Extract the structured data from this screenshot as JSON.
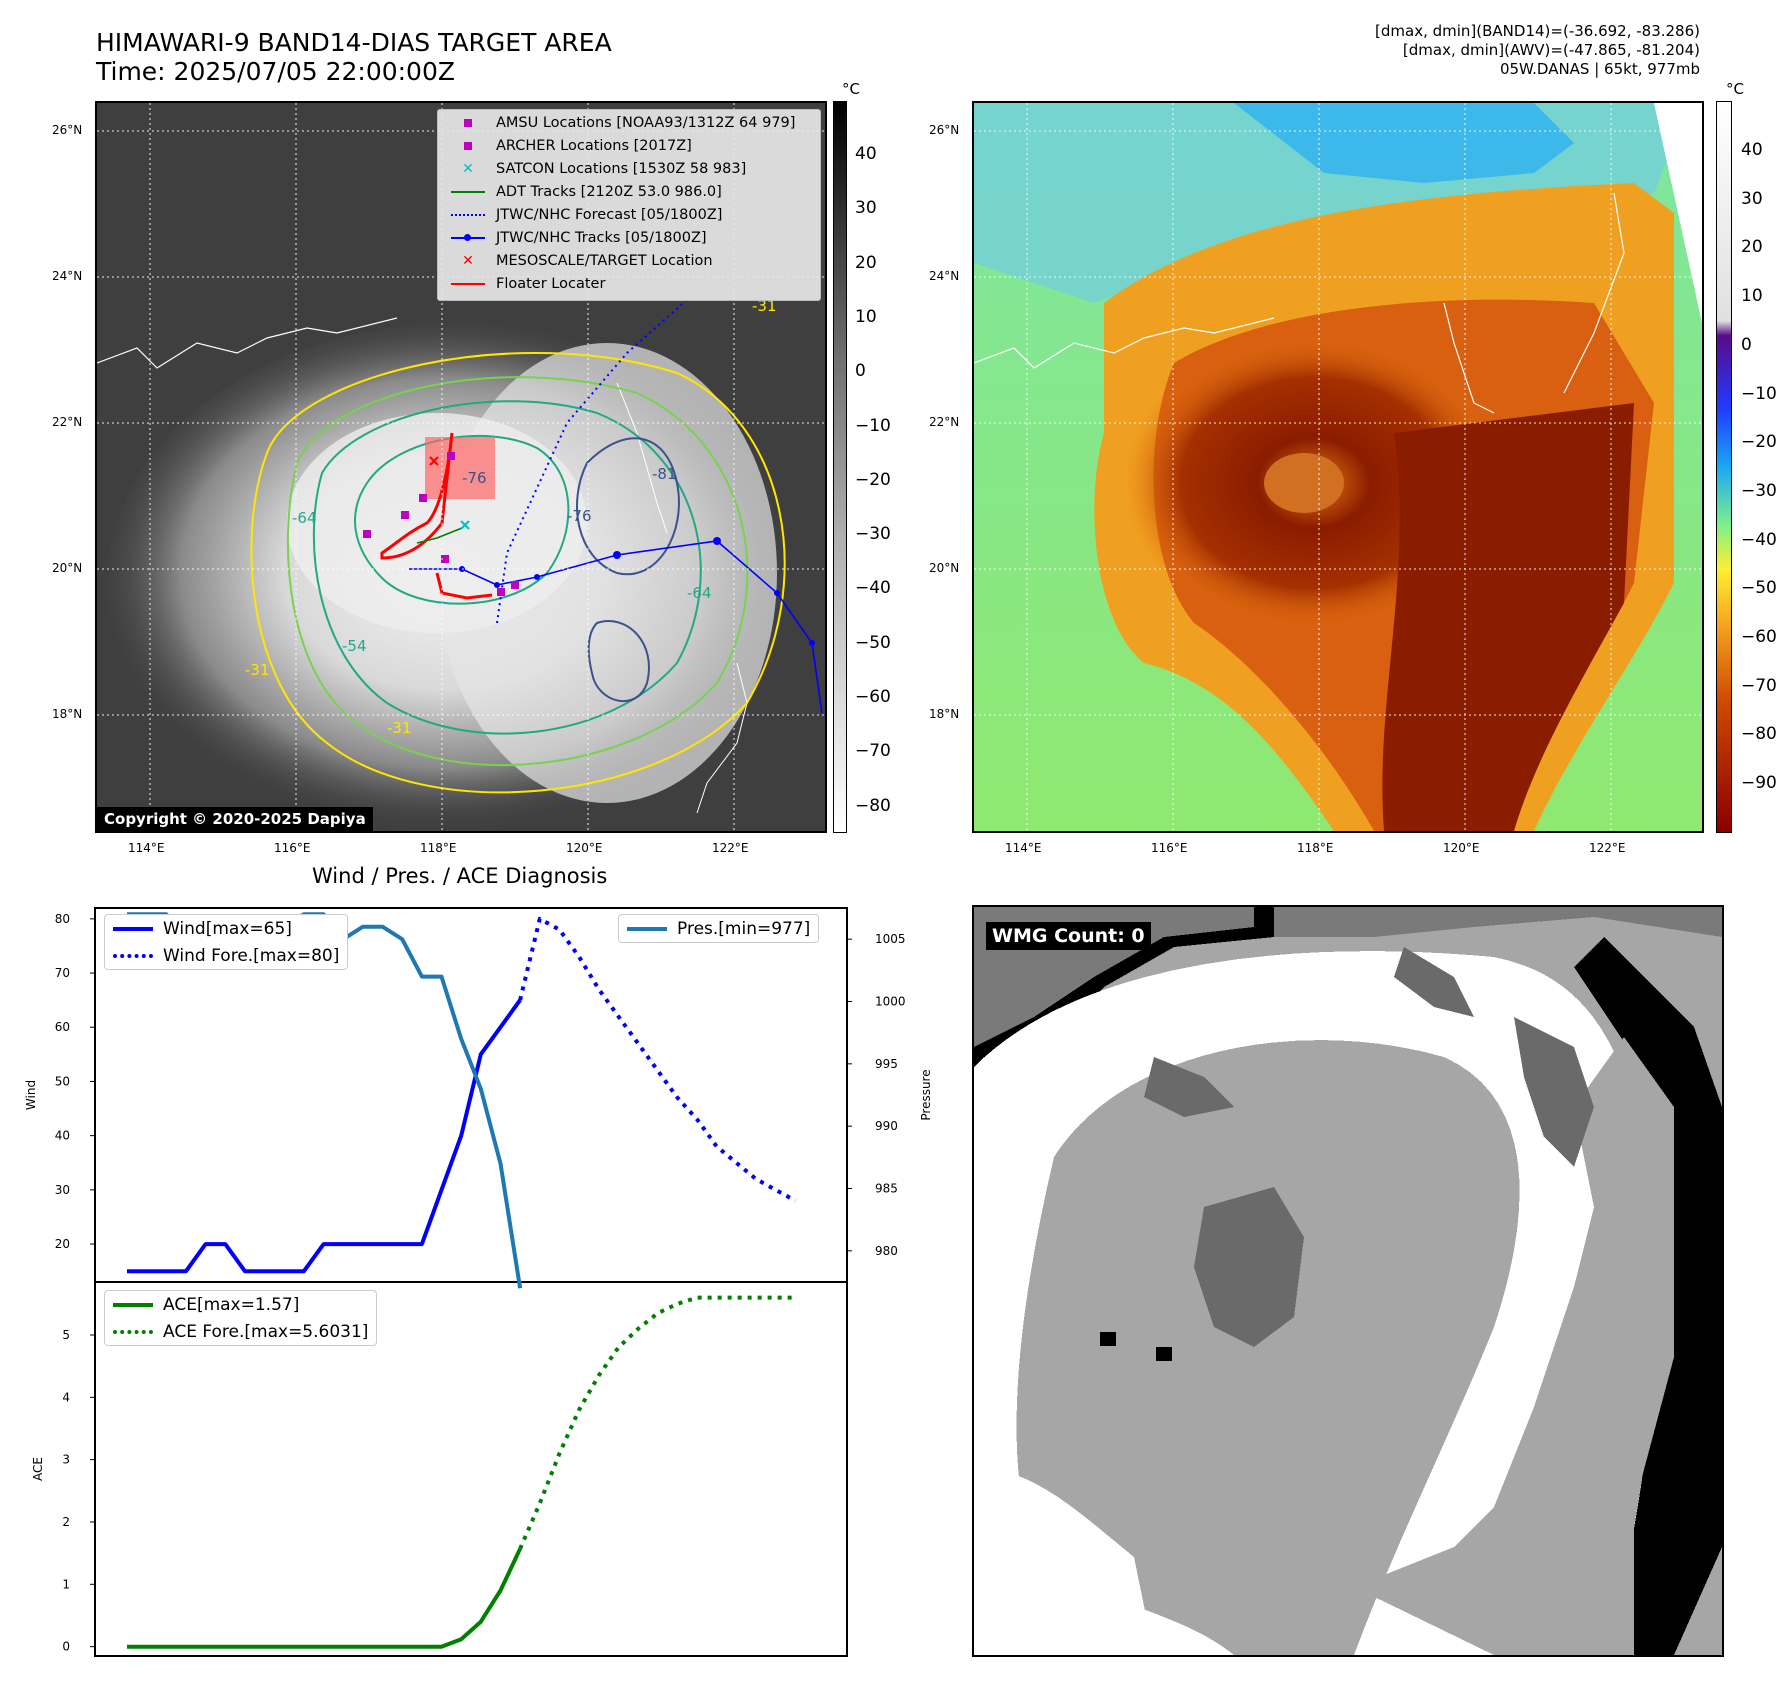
{
  "header": {
    "title_line1": "HIMAWARI-9 BAND14-DIAS TARGET AREA",
    "title_line2": "Time: 2025/07/05 22:00:00Z",
    "info_line1": "[dmax, dmin](BAND14)=(-36.692, -83.286)",
    "info_line2": "[dmax, dmin](AWV)=(-47.865, -81.204)",
    "info_line3": "05W.DANAS | 65kt, 977mb"
  },
  "map_axes": {
    "lat_labels": [
      "26°N",
      "24°N",
      "22°N",
      "20°N",
      "18°N"
    ],
    "lon_labels": [
      "114°E",
      "116°E",
      "118°E",
      "120°E",
      "122°E"
    ]
  },
  "ir_panel": {
    "copyright": "Copyright © 2020-2025 Dapiya",
    "colorbar_unit": "°C",
    "colorbar_ticks": [
      "40",
      "30",
      "20",
      "10",
      "0",
      "−10",
      "−20",
      "−30",
      "−40",
      "−50",
      "−60",
      "−70",
      "−80"
    ],
    "contour_labels": [
      "-31",
      "-64",
      "-76",
      "-81",
      "-76",
      "-64",
      "-31",
      "-54",
      "-31"
    ],
    "legend": [
      {
        "label": "AMSU Locations [NOAA93/1312Z 64 979]",
        "symbol": "square",
        "color": "#bf00bf"
      },
      {
        "label": "ARCHER Locations [2017Z]",
        "symbol": "square",
        "color": "#bf00bf"
      },
      {
        "label": "SATCON Locations [1530Z 58 983]",
        "symbol": "x",
        "color": "#00bfbf"
      },
      {
        "label": "ADT Tracks [2120Z 53.0 986.0]",
        "symbol": "line",
        "color": "#008000"
      },
      {
        "label": "JTWC/NHC Forecast [05/1800Z]",
        "symbol": "dotted",
        "color": "#0000ff"
      },
      {
        "label": "JTWC/NHC Tracks [05/1800Z]",
        "symbol": "line-dot",
        "color": "#0000ff"
      },
      {
        "label": "MESOSCALE/TARGET Location",
        "symbol": "x",
        "color": "#ff0000"
      },
      {
        "label": "Floater Locater",
        "symbol": "line",
        "color": "#ff0000"
      }
    ]
  },
  "wv_panel": {
    "colorbar_unit": "°C",
    "colorbar_ticks": [
      "40",
      "30",
      "20",
      "10",
      "0",
      "−10",
      "−20",
      "−30",
      "−40",
      "−50",
      "−60",
      "−70",
      "−80",
      "−90"
    ]
  },
  "wmg_panel": {
    "label": "WMG Count: 0"
  },
  "chart_data": [
    {
      "type": "line",
      "title": "Wind / Pres. / ACE Diagnosis",
      "ylabel": "Wind",
      "ylim": [
        13,
        82
      ],
      "yticks": [
        20,
        30,
        40,
        50,
        60,
        70,
        80
      ],
      "xlim": [
        0,
        35
      ],
      "series": [
        {
          "name": "Wind[max=65]",
          "color": "#0000ff",
          "style": "solid",
          "x": [
            0,
            1,
            2,
            3,
            4,
            5,
            6,
            7,
            8,
            9,
            10,
            11,
            12,
            13,
            14,
            15,
            16,
            17,
            18,
            19,
            20
          ],
          "y": [
            15,
            15,
            15,
            15,
            20,
            20,
            15,
            15,
            15,
            15,
            20,
            20,
            20,
            20,
            20,
            20,
            30,
            40,
            55,
            60,
            65
          ]
        },
        {
          "name": "Wind Fore.[max=80]",
          "color": "#0000ff",
          "style": "dotted",
          "x": [
            20,
            21,
            22,
            23,
            24,
            25,
            26,
            27,
            28,
            29,
            30,
            31,
            32,
            33,
            34
          ],
          "y": [
            65,
            80,
            78,
            73,
            67,
            62,
            57,
            52,
            47,
            43,
            38,
            35,
            32,
            30,
            28
          ]
        }
      ],
      "legend_position": "upper-left"
    },
    {
      "type": "line",
      "ylabel": "Pressure",
      "ylim": [
        977.5,
        1007.5
      ],
      "yticks": [
        980,
        985,
        990,
        995,
        1000,
        1005
      ],
      "xlim": [
        0,
        35
      ],
      "series": [
        {
          "name": "Pres.[min=977]",
          "color": "#1f77b4",
          "style": "solid",
          "x": [
            0,
            1,
            2,
            3,
            4,
            5,
            6,
            7,
            8,
            9,
            10,
            11,
            12,
            13,
            14,
            15,
            16,
            17,
            18,
            19,
            20
          ],
          "y": [
            1007,
            1007,
            1007,
            1005,
            1005,
            1005,
            1006,
            1006,
            1006,
            1007,
            1007,
            1005,
            1006,
            1006,
            1005,
            1002,
            1002,
            997,
            993,
            987,
            977
          ]
        }
      ],
      "legend_position": "upper-right"
    },
    {
      "type": "line",
      "ylabel": "ACE",
      "ylim": [
        -0.15,
        5.85
      ],
      "yticks": [
        0,
        1,
        2,
        3,
        4,
        5
      ],
      "xlim": [
        0,
        35
      ],
      "series": [
        {
          "name": "ACE[max=1.57]",
          "color": "#008000",
          "style": "solid",
          "x": [
            0,
            2,
            4,
            6,
            8,
            10,
            12,
            14,
            16,
            17,
            18,
            19,
            20
          ],
          "y": [
            0,
            0,
            0,
            0,
            0,
            0,
            0,
            0,
            0,
            0.12,
            0.4,
            0.9,
            1.57
          ]
        },
        {
          "name": "ACE Fore.[max=5.6031]",
          "color": "#008000",
          "style": "dotted",
          "x": [
            20,
            21,
            22,
            23,
            24,
            25,
            26,
            27,
            28,
            29,
            30,
            31,
            32,
            33,
            34
          ],
          "y": [
            1.57,
            2.3,
            3.1,
            3.8,
            4.35,
            4.8,
            5.1,
            5.35,
            5.5,
            5.6,
            5.6,
            5.6,
            5.6,
            5.6,
            5.6
          ]
        }
      ],
      "legend_position": "upper-left"
    }
  ]
}
